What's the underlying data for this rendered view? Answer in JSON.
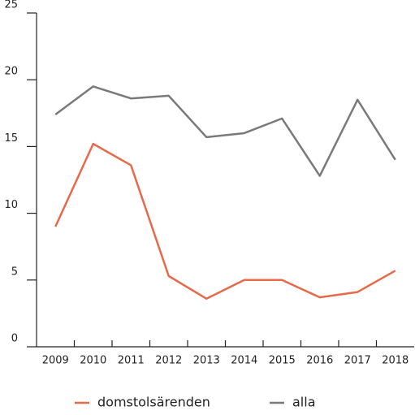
{
  "chart_data": {
    "type": "line",
    "categories": [
      "2009",
      "2010",
      "2011",
      "2012",
      "2013",
      "2014",
      "2015",
      "2016",
      "2017",
      "2018"
    ],
    "series": [
      {
        "name": "domstolsärenden",
        "color": "#e8694a",
        "values": [
          9.0,
          15.2,
          13.6,
          5.3,
          3.6,
          5.0,
          5.0,
          3.7,
          4.1,
          5.7
        ]
      },
      {
        "name": "alla",
        "color": "#7a7a7a",
        "values": [
          17.4,
          19.5,
          18.6,
          18.8,
          15.7,
          16.0,
          17.1,
          12.8,
          18.5,
          14.0
        ]
      }
    ],
    "ylim": [
      0,
      25
    ],
    "yticks": [
      0,
      5,
      10,
      15,
      20,
      25
    ],
    "grid": false,
    "legend": "bottom"
  }
}
